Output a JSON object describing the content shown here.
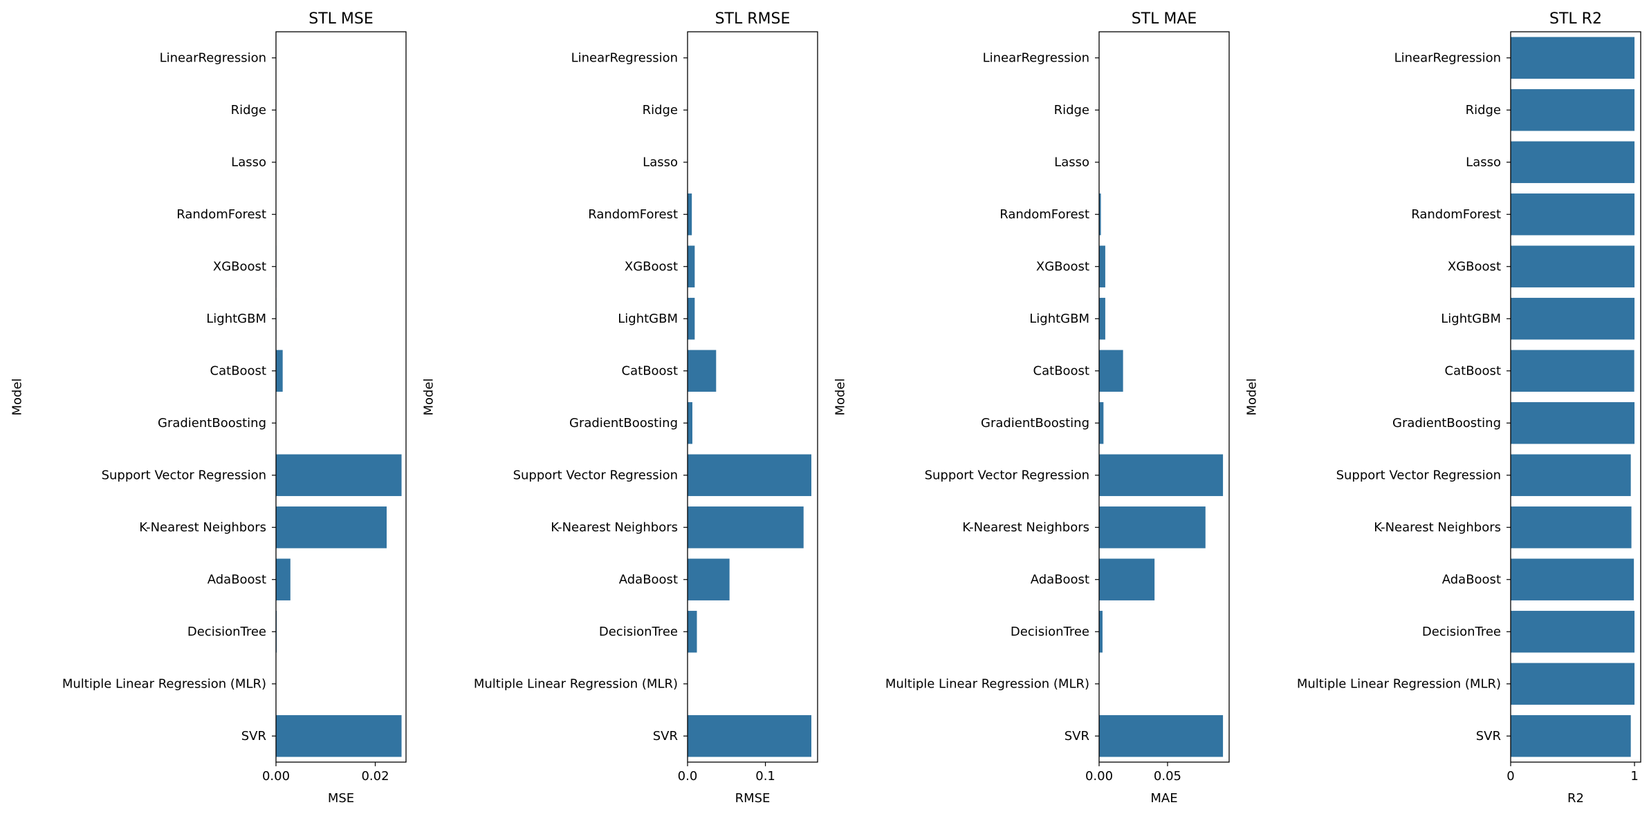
{
  "chart_data": [
    {
      "type": "bar",
      "orientation": "horizontal",
      "title": "STL MSE",
      "xlabel": "MSE",
      "ylabel": "Model",
      "categories": [
        "LinearRegression",
        "Ridge",
        "Lasso",
        "RandomForest",
        "XGBoost",
        "LightGBM",
        "CatBoost",
        "GradientBoosting",
        "Support Vector Regression",
        "K-Nearest Neighbors",
        "AdaBoost",
        "DecisionTree",
        "Multiple Linear Regression (MLR)",
        "SVR"
      ],
      "values": [
        0.0,
        0.0,
        0.0,
        3e-05,
        8e-05,
        8e-05,
        0.00135,
        4e-05,
        0.0253,
        0.0223,
        0.0029,
        0.00014,
        0.0,
        0.0253
      ],
      "xlim": [
        0,
        0.0262
      ],
      "xticks": [
        0.0,
        0.02
      ],
      "xtick_labels": [
        "0.00",
        "0.02"
      ],
      "color": "#3274a1"
    },
    {
      "type": "bar",
      "orientation": "horizontal",
      "title": "STL RMSE",
      "xlabel": "RMSE",
      "ylabel": "Model",
      "categories": [
        "LinearRegression",
        "Ridge",
        "Lasso",
        "RandomForest",
        "XGBoost",
        "LightGBM",
        "CatBoost",
        "GradientBoosting",
        "Support Vector Regression",
        "K-Nearest Neighbors",
        "AdaBoost",
        "DecisionTree",
        "Multiple Linear Regression (MLR)",
        "SVR"
      ],
      "values": [
        0.0,
        0.0,
        0.0,
        0.0055,
        0.0092,
        0.0092,
        0.0367,
        0.0062,
        0.159,
        0.149,
        0.0539,
        0.012,
        0.0,
        0.159
      ],
      "xlim": [
        0,
        0.167
      ],
      "xticks": [
        0.0,
        0.1
      ],
      "xtick_labels": [
        "0.0",
        "0.1"
      ],
      "color": "#3274a1"
    },
    {
      "type": "bar",
      "orientation": "horizontal",
      "title": "STL MAE",
      "xlabel": "MAE",
      "ylabel": "Model",
      "categories": [
        "LinearRegression",
        "Ridge",
        "Lasso",
        "RandomForest",
        "XGBoost",
        "LightGBM",
        "CatBoost",
        "GradientBoosting",
        "Support Vector Regression",
        "K-Nearest Neighbors",
        "AdaBoost",
        "DecisionTree",
        "Multiple Linear Regression (MLR)",
        "SVR"
      ],
      "values": [
        0.0,
        0.0,
        0.0,
        0.0013,
        0.0045,
        0.0045,
        0.0175,
        0.0032,
        0.0905,
        0.0777,
        0.0405,
        0.0025,
        0.0,
        0.0905
      ],
      "xlim": [
        0,
        0.095
      ],
      "xticks": [
        0.0,
        0.05
      ],
      "xtick_labels": [
        "0.00",
        "0.05"
      ],
      "color": "#3274a1"
    },
    {
      "type": "bar",
      "orientation": "horizontal",
      "title": "STL R2",
      "xlabel": "R2",
      "ylabel": "Model",
      "categories": [
        "LinearRegression",
        "Ridge",
        "Lasso",
        "RandomForest",
        "XGBoost",
        "LightGBM",
        "CatBoost",
        "GradientBoosting",
        "Support Vector Regression",
        "K-Nearest Neighbors",
        "AdaBoost",
        "DecisionTree",
        "Multiple Linear Regression (MLR)",
        "SVR"
      ],
      "values": [
        1.0,
        1.0,
        1.0,
        1.0,
        1.0,
        1.0,
        0.998,
        1.0,
        0.97,
        0.975,
        0.995,
        1.0,
        1.0,
        0.97
      ],
      "xlim": [
        0,
        1.05
      ],
      "xticks": [
        0,
        1
      ],
      "xtick_labels": [
        "0",
        "1"
      ],
      "color": "#3274a1"
    }
  ]
}
